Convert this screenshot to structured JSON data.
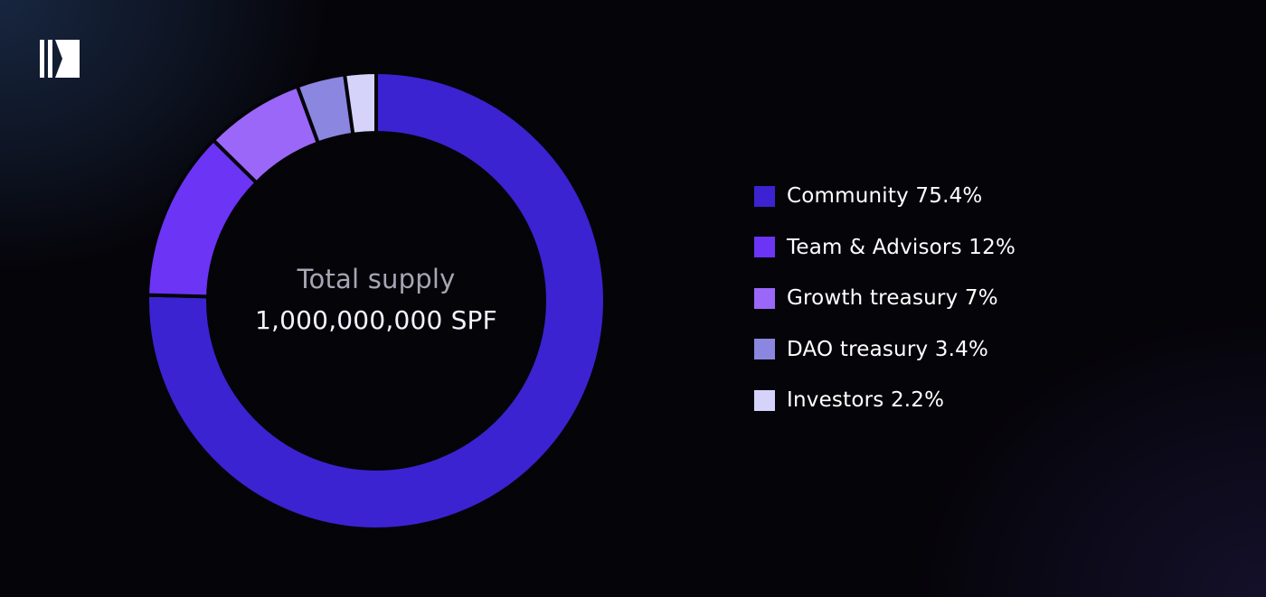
{
  "brand": {
    "logo_icon": "brand-logo-icon"
  },
  "chart_data": {
    "type": "pie",
    "title": "",
    "center": {
      "title": "Total supply",
      "value": "1,000,000,000 SPF"
    },
    "legend_position": "right",
    "categories": [
      "Community",
      "Team & Advisors",
      "Growth treasury",
      "DAO treasury",
      "Investors"
    ],
    "values": [
      75.4,
      12,
      7,
      3.4,
      2.2
    ],
    "colors": [
      "#3b23d1",
      "#6c34f5",
      "#9a67f8",
      "#8b86e0",
      "#d6d3fb"
    ],
    "legend_labels": [
      "Community 75.4%",
      "Team & Advisors 12%",
      "Growth treasury 7%",
      "DAO treasury 3.4%",
      "Investors 2.2%"
    ]
  }
}
